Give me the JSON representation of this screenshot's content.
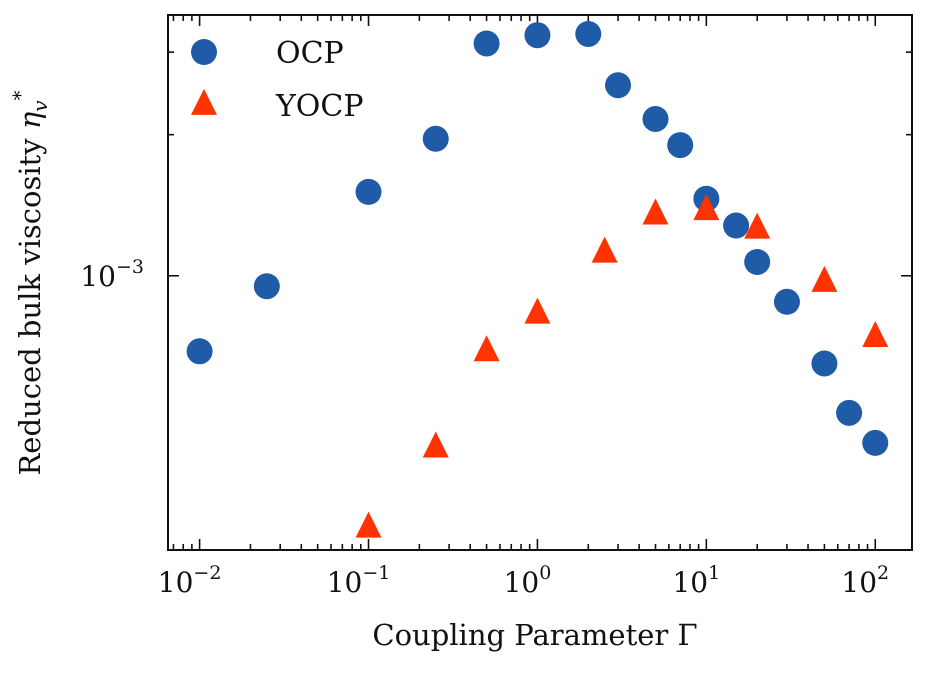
{
  "chart_data": {
    "type": "scatter",
    "xscale": "log",
    "yscale": "log",
    "xlabel": "Coupling Parameter Γ",
    "ylabel": "Reduced bulk viscosity η_v^*",
    "xlim": [
      0.0065,
      165
    ],
    "ylim": [
      0.00026,
      0.0036
    ],
    "x_tick_labels": [
      {
        "value": 0.01,
        "base": "10",
        "exp": "−2"
      },
      {
        "value": 0.1,
        "base": "10",
        "exp": "−1"
      },
      {
        "value": 1,
        "base": "10",
        "exp": "0"
      },
      {
        "value": 10,
        "base": "10",
        "exp": "1"
      },
      {
        "value": 100,
        "base": "10",
        "exp": "2"
      }
    ],
    "y_tick_labels": [
      {
        "value": 0.001,
        "base": "10",
        "exp": "−3"
      }
    ],
    "legend_position": "top-left",
    "series": [
      {
        "name": "OCP",
        "marker": "circle",
        "color": "#1f5ba6",
        "points": [
          {
            "x": 0.01,
            "y": 0.00069
          },
          {
            "x": 0.025,
            "y": 0.00095
          },
          {
            "x": 0.1,
            "y": 0.00151
          },
          {
            "x": 0.25,
            "y": 0.00196
          },
          {
            "x": 0.5,
            "y": 0.00313
          },
          {
            "x": 1,
            "y": 0.00326
          },
          {
            "x": 2,
            "y": 0.00328
          },
          {
            "x": 3,
            "y": 0.00255
          },
          {
            "x": 5,
            "y": 0.00216
          },
          {
            "x": 7,
            "y": 0.0019
          },
          {
            "x": 10,
            "y": 0.00146
          },
          {
            "x": 15,
            "y": 0.00128
          },
          {
            "x": 20,
            "y": 0.00107
          },
          {
            "x": 30,
            "y": 0.00088
          },
          {
            "x": 50,
            "y": 0.00065
          },
          {
            "x": 70,
            "y": 0.00051
          },
          {
            "x": 100,
            "y": 0.00044
          }
        ]
      },
      {
        "name": "YOCP",
        "marker": "triangle",
        "color": "#ff3300",
        "points": [
          {
            "x": 0.1,
            "y": 0.00029
          },
          {
            "x": 0.25,
            "y": 0.00043
          },
          {
            "x": 0.5,
            "y": 0.00069
          },
          {
            "x": 1,
            "y": 0.00083
          },
          {
            "x": 2.5,
            "y": 0.00112
          },
          {
            "x": 5,
            "y": 0.00135
          },
          {
            "x": 10,
            "y": 0.00138
          },
          {
            "x": 20,
            "y": 0.00126
          },
          {
            "x": 50,
            "y": 0.00097
          },
          {
            "x": 100,
            "y": 0.00074
          }
        ]
      }
    ]
  }
}
